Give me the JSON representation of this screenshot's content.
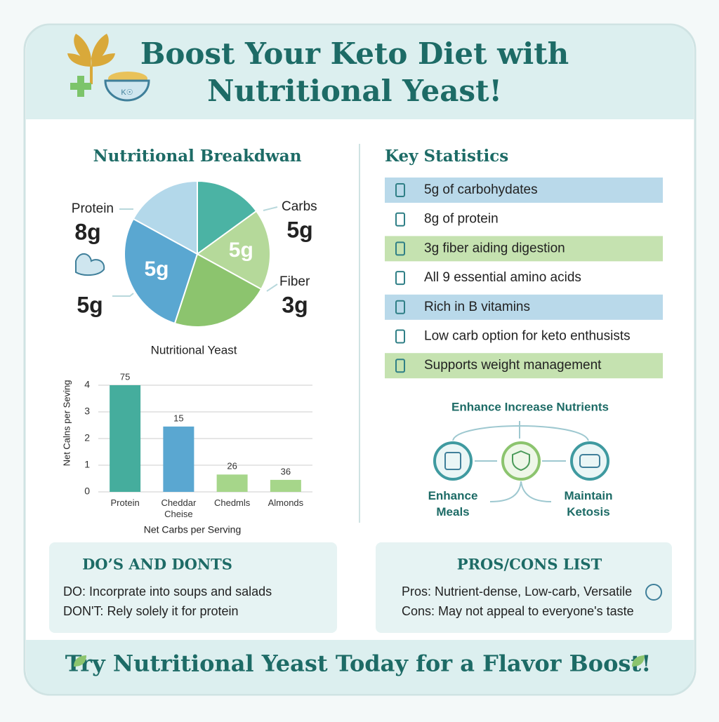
{
  "header": {
    "title_lines": [
      "Boost Your Keto Diet with",
      "Nutritional Yeast!"
    ]
  },
  "chart_data": [
    {
      "type": "pie",
      "title": "Nutritional Breakdwan",
      "values": [
        15,
        18,
        22,
        28,
        17
      ],
      "colors": [
        "#4bb3a4",
        "#b5d99a",
        "#8cc46e",
        "#5aa7d1",
        "#b3d8ea"
      ],
      "value_labels": [
        null,
        "5g",
        null,
        "5g",
        null
      ],
      "annotations": [
        {
          "name": "Protein",
          "amount": "8g"
        },
        {
          "name": "Carbs",
          "amount": "5g"
        },
        {
          "name": "Fiber",
          "amount": "3g"
        },
        {
          "amount": "5g"
        }
      ]
    },
    {
      "type": "bar",
      "title": "Nutritional Yeast",
      "ylabel": "Net Calns per Seving",
      "xlabel": "Net Carbs per Serving",
      "categories": [
        "Protein",
        "Cheddar Cheise",
        "Chedmls",
        "Almonds"
      ],
      "values": [
        4,
        2.45,
        0.65,
        0.45
      ],
      "colors": [
        "#45ad9d",
        "#5aa7d1",
        "#a6d68a",
        "#a6d68a"
      ],
      "annotations": [
        "75",
        "15",
        "26",
        "36"
      ],
      "ylim": [
        0,
        4
      ],
      "yticks": [
        0,
        1,
        2,
        3,
        4
      ],
      "grid": true
    }
  ],
  "stats": {
    "title": "Key Statistics",
    "items": [
      {
        "text": "5g of carbohydates",
        "color": "#b9d9ea"
      },
      {
        "text": "8g of protein"
      },
      {
        "text": "3g fiber aiding digestion",
        "color": "#c5e2b0"
      },
      {
        "text": "All 9 essential amino acids"
      },
      {
        "text": "Rich in B vitamins",
        "color": "#b9d9ea"
      },
      {
        "text": "Low carb option for keto enthusists"
      },
      {
        "text": "Supports weight management",
        "color": "#c5e2b0"
      }
    ]
  },
  "flow": {
    "title": "Enhance Increase Nutrients",
    "nodes": [
      {
        "label": "Enhance Meals"
      },
      {
        "label": "Maintain Ketosis"
      }
    ]
  },
  "dos": {
    "title": "DO’S AND DONTS",
    "lines": [
      "DO: Incorprate into soups and salads",
      "DON'T: Rely solely it for protein"
    ]
  },
  "pros": {
    "title": "PROS/CONS LIST",
    "lines": [
      "Pros: Nutrient-dense, Low-carb, Versatile",
      "Cons: May not appeal to everyone's taste"
    ]
  },
  "footer": {
    "text": "Try Nutritional Yeast Today for a Flavor Boost!"
  }
}
